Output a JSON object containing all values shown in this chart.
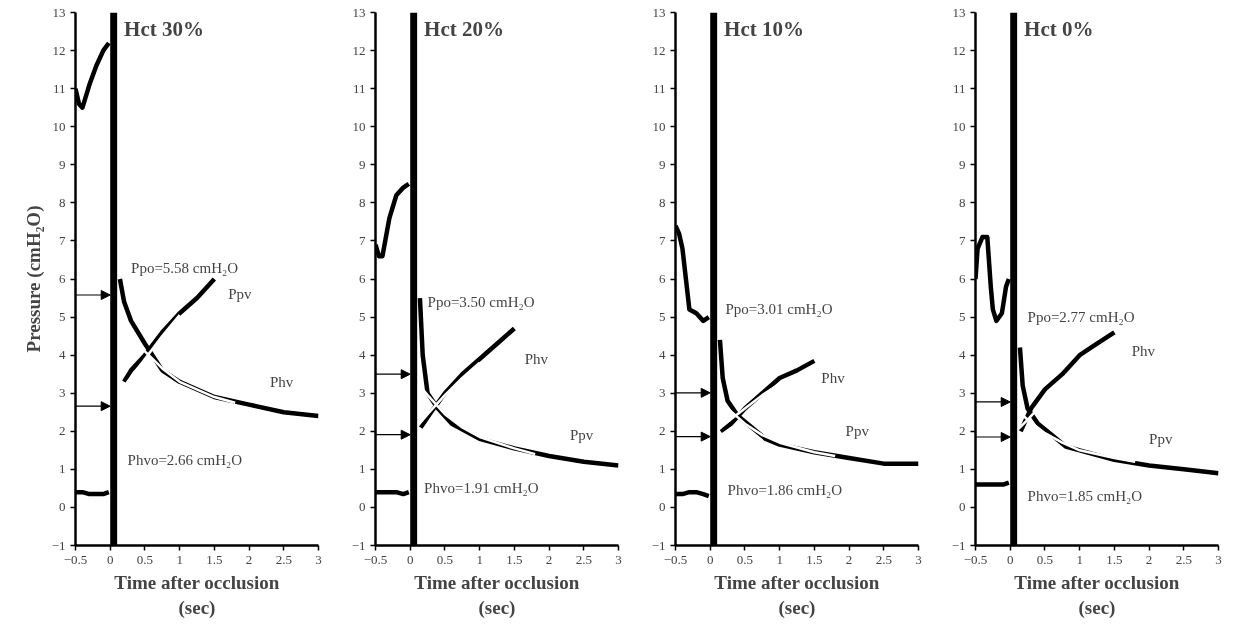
{
  "chart_data": [
    {
      "type": "line",
      "title": "Hct 30%",
      "xlabel": "Time after occlusion\n(sec)",
      "ylabel": "Pressure (cmH₂O)",
      "xlim": [
        -0.5,
        3
      ],
      "ylim": [
        -1,
        13
      ],
      "xticks": [
        -0.5,
        0,
        0.5,
        1,
        1.5,
        2,
        2.5,
        3
      ],
      "yticks": [
        -1,
        0,
        1,
        2,
        3,
        4,
        5,
        6,
        7,
        8,
        9,
        10,
        11,
        12,
        13
      ],
      "grid": false,
      "bands": [
        {
          "axis": "x",
          "from": 0,
          "to": 0.1,
          "color": "#000000"
        }
      ],
      "series": [
        {
          "color": "#000000",
          "x": [
            -0.5,
            -0.45,
            -0.4,
            -0.3,
            -0.2,
            -0.1,
            -0.02
          ],
          "values": [
            11.0,
            10.6,
            10.5,
            11.1,
            11.6,
            12.0,
            12.2
          ]
        },
        {
          "color": "#000000",
          "x": [
            -0.5,
            -0.4,
            -0.3,
            -0.2,
            -0.1,
            -0.02
          ],
          "values": [
            0.4,
            0.4,
            0.35,
            0.35,
            0.35,
            0.4
          ]
        },
        {
          "color": "#000000",
          "x": [
            0.14,
            0.2,
            0.3,
            0.5,
            0.75,
            1.0,
            1.5,
            2.0,
            2.5,
            3.0
          ],
          "values": [
            6.0,
            5.4,
            4.9,
            4.3,
            3.6,
            3.3,
            2.9,
            2.7,
            2.5,
            2.4
          ]
        },
        {
          "color": "#000000",
          "x": [
            0.2,
            0.3,
            0.5,
            0.75,
            1.0,
            1.25,
            1.5
          ],
          "values": [
            3.3,
            3.6,
            4.0,
            4.6,
            5.1,
            5.5,
            6.0
          ]
        },
        {
          "color": "#ffffff",
          "x": [
            0,
            0.25,
            0.5,
            0.75,
            1.0,
            1.5,
            1.8
          ],
          "values": [
            5.58,
            4.7,
            4.1,
            3.65,
            3.3,
            2.9,
            2.75
          ]
        },
        {
          "color": "#ffffff",
          "x": [
            0,
            0.25,
            0.5,
            0.75,
            1.0
          ],
          "values": [
            2.66,
            3.3,
            3.9,
            4.5,
            5.05
          ]
        }
      ],
      "annotations": [
        "Ppo=5.58 cmH₂O",
        "Ppv",
        "Phv",
        "Phvo=2.66 cmH₂O"
      ]
    },
    {
      "type": "line",
      "title": "Hct 20%",
      "xlabel": "Time after occlusion\n(sec)",
      "xlim": [
        -0.5,
        3
      ],
      "ylim": [
        -1,
        13
      ],
      "xticks": [
        -0.5,
        0,
        0.5,
        1,
        1.5,
        2,
        2.5,
        3
      ],
      "yticks": [
        -1,
        0,
        1,
        2,
        3,
        4,
        5,
        6,
        7,
        8,
        9,
        10,
        11,
        12,
        13
      ],
      "grid": false,
      "bands": [
        {
          "axis": "x",
          "from": 0,
          "to": 0.1,
          "color": "#000000"
        }
      ],
      "series": [
        {
          "color": "#000000",
          "x": [
            -0.5,
            -0.45,
            -0.4,
            -0.3,
            -0.2,
            -0.1,
            -0.02
          ],
          "values": [
            6.9,
            6.6,
            6.6,
            7.6,
            8.2,
            8.4,
            8.5
          ]
        },
        {
          "color": "#000000",
          "x": [
            -0.5,
            -0.4,
            -0.3,
            -0.2,
            -0.1,
            -0.02
          ],
          "values": [
            0.4,
            0.4,
            0.4,
            0.4,
            0.35,
            0.4
          ]
        },
        {
          "color": "#000000",
          "x": [
            0.14,
            0.18,
            0.25,
            0.4,
            0.6,
            0.8,
            1.0,
            1.5,
            2.0,
            2.5,
            3.0
          ],
          "values": [
            5.5,
            4.0,
            3.0,
            2.6,
            2.2,
            2.0,
            1.8,
            1.55,
            1.35,
            1.2,
            1.1
          ]
        },
        {
          "color": "#000000",
          "x": [
            0.15,
            0.3,
            0.5,
            0.75,
            1.0,
            1.25,
            1.5
          ],
          "values": [
            2.1,
            2.5,
            3.0,
            3.5,
            3.9,
            4.3,
            4.7
          ]
        },
        {
          "color": "#ffffff",
          "x": [
            0,
            0.25,
            0.5,
            0.75,
            1.0,
            1.5,
            1.8
          ],
          "values": [
            3.5,
            2.95,
            2.45,
            2.1,
            1.85,
            1.55,
            1.4
          ]
        },
        {
          "color": "#ffffff",
          "x": [
            0,
            0.25,
            0.5,
            0.75,
            1.0
          ],
          "values": [
            1.91,
            2.45,
            2.95,
            3.4,
            3.8
          ]
        }
      ],
      "annotations": [
        "Ppo=3.50 cmH₂O",
        "Phv",
        "Ppv",
        "Phvo=1.91 cmH₂O"
      ]
    },
    {
      "type": "line",
      "title": "Hct 10%",
      "xlabel": "Time after occlusion\n(sec)",
      "xlim": [
        -0.5,
        3
      ],
      "ylim": [
        -1,
        13
      ],
      "xticks": [
        -0.5,
        0,
        0.5,
        1,
        1.5,
        2,
        2.5,
        3
      ],
      "yticks": [
        -1,
        0,
        1,
        2,
        3,
        4,
        5,
        6,
        7,
        8,
        9,
        10,
        11,
        12,
        13
      ],
      "grid": false,
      "bands": [
        {
          "axis": "x",
          "from": 0,
          "to": 0.1,
          "color": "#000000"
        }
      ],
      "series": [
        {
          "color": "#000000",
          "x": [
            -0.5,
            -0.45,
            -0.4,
            -0.35,
            -0.3,
            -0.2,
            -0.1,
            -0.02
          ],
          "values": [
            7.4,
            7.2,
            6.8,
            6.0,
            5.2,
            5.1,
            4.9,
            5.0
          ]
        },
        {
          "color": "#000000",
          "x": [
            -0.5,
            -0.4,
            -0.3,
            -0.2,
            -0.1,
            -0.02
          ],
          "values": [
            0.35,
            0.35,
            0.4,
            0.4,
            0.35,
            0.3
          ]
        },
        {
          "color": "#000000",
          "x": [
            0.14,
            0.18,
            0.25,
            0.4,
            0.6,
            0.8,
            1.0,
            1.5,
            2.0,
            2.5,
            3.0
          ],
          "values": [
            4.4,
            3.4,
            2.8,
            2.4,
            2.1,
            1.8,
            1.65,
            1.45,
            1.3,
            1.15,
            1.15
          ]
        },
        {
          "color": "#000000",
          "x": [
            0.15,
            0.3,
            0.5,
            0.75,
            1.0,
            1.25,
            1.5
          ],
          "values": [
            2.0,
            2.2,
            2.6,
            3.0,
            3.4,
            3.6,
            3.85
          ]
        },
        {
          "color": "#ffffff",
          "x": [
            0,
            0.25,
            0.5,
            0.75,
            1.0,
            1.5,
            1.8
          ],
          "values": [
            3.01,
            2.6,
            2.2,
            1.9,
            1.7,
            1.45,
            1.35
          ]
        },
        {
          "color": "#ffffff",
          "x": [
            0,
            0.25,
            0.5,
            0.75,
            1.0
          ],
          "values": [
            1.86,
            2.25,
            2.6,
            2.95,
            3.25
          ]
        }
      ],
      "annotations": [
        "Ppo=3.01 cmH₂O",
        "Phv",
        "Ppv",
        "Phvo=1.86 cmH₂O"
      ]
    },
    {
      "type": "line",
      "title": "Hct 0%",
      "xlabel": "Time after occlusion\n(sec)",
      "xlim": [
        -0.5,
        3
      ],
      "ylim": [
        -1,
        13
      ],
      "xticks": [
        -0.5,
        0,
        0.5,
        1,
        1.5,
        2,
        2.5,
        3
      ],
      "yticks": [
        -1,
        0,
        1,
        2,
        3,
        4,
        5,
        6,
        7,
        8,
        9,
        10,
        11,
        12,
        13
      ],
      "grid": false,
      "bands": [
        {
          "axis": "x",
          "from": 0,
          "to": 0.1,
          "color": "#000000"
        }
      ],
      "series": [
        {
          "color": "#000000",
          "x": [
            -0.5,
            -0.47,
            -0.4,
            -0.33,
            -0.28,
            -0.25,
            -0.2,
            -0.12,
            -0.06,
            -0.02
          ],
          "values": [
            6.0,
            6.8,
            7.1,
            7.1,
            5.8,
            5.2,
            4.9,
            5.1,
            5.8,
            6.0
          ]
        },
        {
          "color": "#000000",
          "x": [
            -0.5,
            -0.4,
            -0.3,
            -0.2,
            -0.1,
            -0.02
          ],
          "values": [
            0.6,
            0.6,
            0.6,
            0.6,
            0.6,
            0.65
          ]
        },
        {
          "color": "#000000",
          "x": [
            0.14,
            0.18,
            0.25,
            0.4,
            0.6,
            0.8,
            1.0,
            1.5,
            2.0,
            2.5,
            3.0
          ],
          "values": [
            4.2,
            3.2,
            2.6,
            2.2,
            1.9,
            1.6,
            1.5,
            1.25,
            1.1,
            1.0,
            0.9
          ]
        },
        {
          "color": "#000000",
          "x": [
            0.15,
            0.3,
            0.5,
            0.75,
            1.0,
            1.25,
            1.5
          ],
          "values": [
            2.0,
            2.6,
            3.1,
            3.5,
            4.0,
            4.3,
            4.6
          ]
        },
        {
          "color": "#ffffff",
          "x": [
            0,
            0.25,
            0.5,
            0.75,
            1.0,
            1.5,
            1.8
          ],
          "values": [
            2.77,
            2.3,
            1.95,
            1.7,
            1.5,
            1.3,
            1.2
          ]
        },
        {
          "color": "#ffffff",
          "x": [
            0,
            0.25,
            0.5,
            0.75,
            1.0
          ],
          "values": [
            1.85,
            2.3,
            2.8,
            3.3,
            3.75
          ]
        }
      ],
      "annotations": [
        "Ppo=2.77 cmH₂O",
        "Phv",
        "Ppv",
        "Phvo=1.85 cmH₂O"
      ]
    }
  ]
}
